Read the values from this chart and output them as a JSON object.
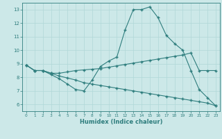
{
  "line1_x": [
    0,
    1,
    2,
    3,
    4,
    5,
    6,
    7,
    8,
    9,
    10,
    11,
    12,
    13,
    14,
    15,
    16,
    17,
    18,
    19,
    20,
    21,
    22,
    23
  ],
  "line1_y": [
    8.9,
    8.5,
    8.5,
    8.2,
    7.9,
    7.5,
    7.1,
    7.0,
    7.8,
    8.8,
    9.2,
    9.5,
    11.5,
    13.0,
    13.0,
    13.2,
    12.4,
    11.1,
    10.5,
    10.0,
    8.5,
    7.1,
    6.5,
    5.9
  ],
  "line2_x": [
    0,
    1,
    2,
    3,
    4,
    5,
    6,
    7,
    8,
    9,
    10,
    11,
    12,
    13,
    14,
    15,
    16,
    17,
    18,
    19,
    20,
    21,
    22,
    23
  ],
  "line2_y": [
    8.9,
    8.5,
    8.5,
    8.3,
    8.3,
    8.4,
    8.5,
    8.55,
    8.6,
    8.65,
    8.75,
    8.85,
    8.95,
    9.05,
    9.15,
    9.25,
    9.35,
    9.45,
    9.55,
    9.65,
    9.8,
    8.5,
    8.5,
    8.5
  ],
  "line3_x": [
    0,
    1,
    2,
    3,
    4,
    5,
    6,
    7,
    8,
    9,
    10,
    11,
    12,
    13,
    14,
    15,
    16,
    17,
    18,
    19,
    20,
    21,
    22,
    23
  ],
  "line3_y": [
    8.9,
    8.5,
    8.5,
    8.3,
    8.1,
    7.95,
    7.8,
    7.6,
    7.5,
    7.4,
    7.3,
    7.2,
    7.1,
    7.0,
    6.9,
    6.8,
    6.7,
    6.6,
    6.5,
    6.4,
    6.3,
    6.2,
    6.1,
    5.9
  ],
  "color": "#2e7d7d",
  "bg_color": "#cce8e8",
  "grid_color": "#b0d8d8",
  "xlabel": "Humidex (Indice chaleur)",
  "ylim": [
    5.5,
    13.5
  ],
  "xlim": [
    -0.5,
    23.5
  ],
  "yticks": [
    6,
    7,
    8,
    9,
    10,
    11,
    12,
    13
  ],
  "xticks": [
    0,
    1,
    2,
    3,
    4,
    5,
    6,
    7,
    8,
    9,
    10,
    11,
    12,
    13,
    14,
    15,
    16,
    17,
    18,
    19,
    20,
    21,
    22,
    23
  ]
}
